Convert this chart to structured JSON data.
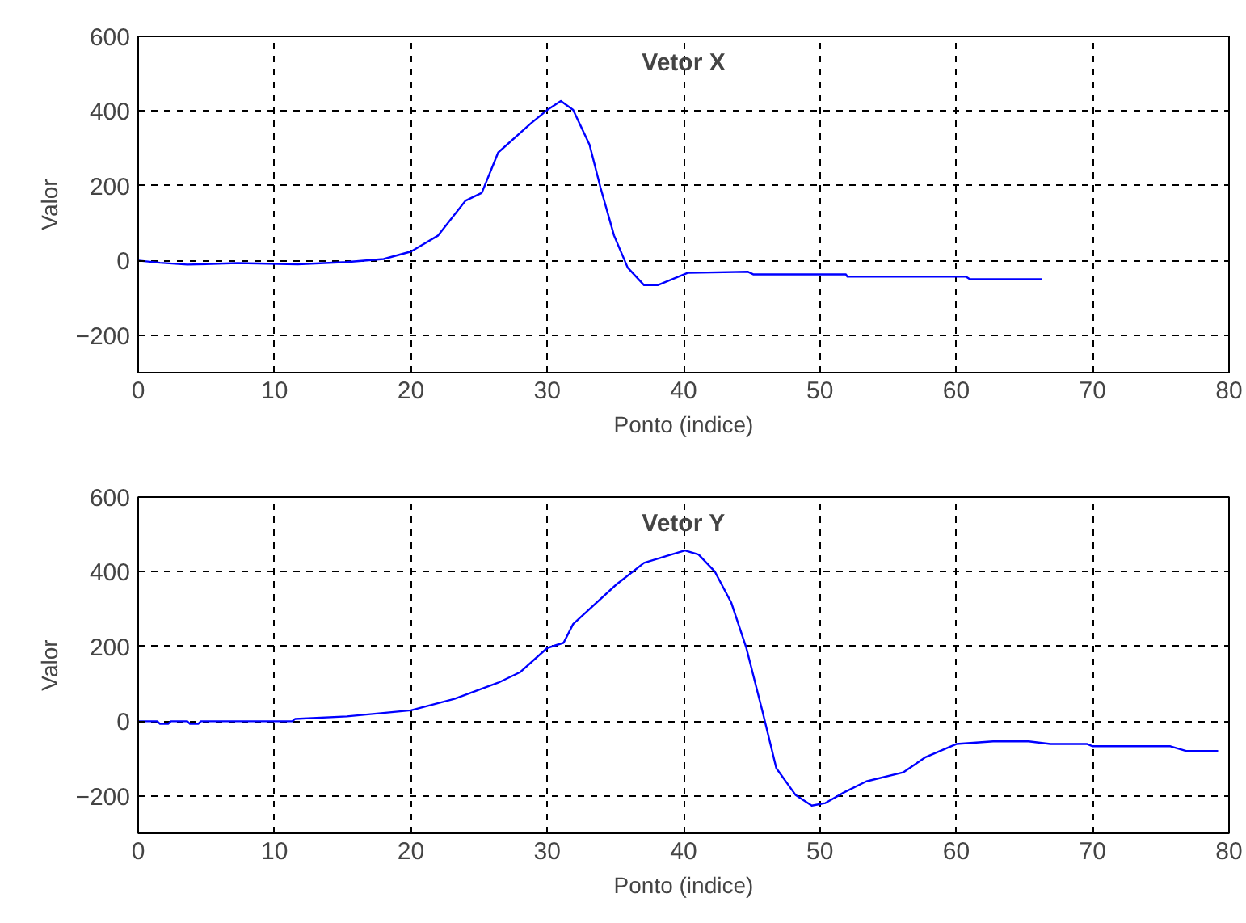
{
  "chart_data": [
    {
      "type": "line",
      "title": "Vetor X",
      "xlabel": "Ponto (indice)",
      "ylabel": "Valor",
      "xlim": [
        0,
        80
      ],
      "xticks": [
        0,
        10,
        20,
        30,
        40,
        50,
        60,
        70,
        80
      ],
      "ylim": [
        -300,
        600
      ],
      "yticks": [
        -200,
        0,
        200,
        400,
        600
      ],
      "grid": true,
      "line_style": "solid",
      "series": [
        {
          "color": "#0000ff",
          "x": [
            0,
            1.6,
            3.6,
            7.3,
            11.7,
            15.3,
            18,
            20,
            22,
            24,
            25.2,
            26.4,
            28.8,
            30,
            31,
            31.9,
            33.1,
            33.9,
            34.9,
            35.9,
            37.1,
            38.1,
            40.3,
            44.7,
            45.1,
            51.9,
            52,
            60.7,
            61,
            66.3
          ],
          "values": [
            0,
            -6,
            -11,
            -7,
            -10,
            -4,
            4,
            24,
            67,
            160,
            181,
            289,
            367,
            403,
            427,
            403,
            310,
            196,
            67,
            -19,
            -66,
            -66,
            -33,
            -30,
            -37,
            -37,
            -43,
            -43,
            -50,
            -50
          ]
        }
      ]
    },
    {
      "type": "line",
      "title": "Vetor Y",
      "xlabel": "Ponto (indice)",
      "ylabel": "Valor",
      "xlim": [
        0,
        80
      ],
      "xticks": [
        0,
        10,
        20,
        30,
        40,
        50,
        60,
        70,
        80
      ],
      "ylim": [
        -300,
        600
      ],
      "yticks": [
        -200,
        0,
        200,
        400,
        600
      ],
      "grid": true,
      "line_style": "solid",
      "series": [
        {
          "color": "#0000ff",
          "x": [
            0,
            1.4,
            1.6,
            2.2,
            2.4,
            3.6,
            3.8,
            4.4,
            4.6,
            11.3,
            11.5,
            15.3,
            20,
            23.2,
            26.4,
            28,
            30,
            31.2,
            31.9,
            35.1,
            37.1,
            39.1,
            40.1,
            41.1,
            42.3,
            43.5,
            44.6,
            45.8,
            46.8,
            48.2,
            49.4,
            50.4,
            51.8,
            53.4,
            56.1,
            57.7,
            60,
            62.7,
            65.3,
            66.9,
            69.6,
            70,
            75.7,
            76.9,
            79.2
          ],
          "values": [
            0,
            0,
            -7,
            -7,
            0,
            0,
            -7,
            -7,
            0,
            0,
            6,
            13,
            29,
            60,
            103,
            131,
            196,
            210,
            260,
            367,
            424,
            446,
            457,
            446,
            400,
            317,
            196,
            24,
            -126,
            -197,
            -226,
            -219,
            -190,
            -161,
            -137,
            -97,
            -61,
            -54,
            -54,
            -61,
            -61,
            -67,
            -67,
            -80,
            -80
          ]
        }
      ]
    }
  ]
}
